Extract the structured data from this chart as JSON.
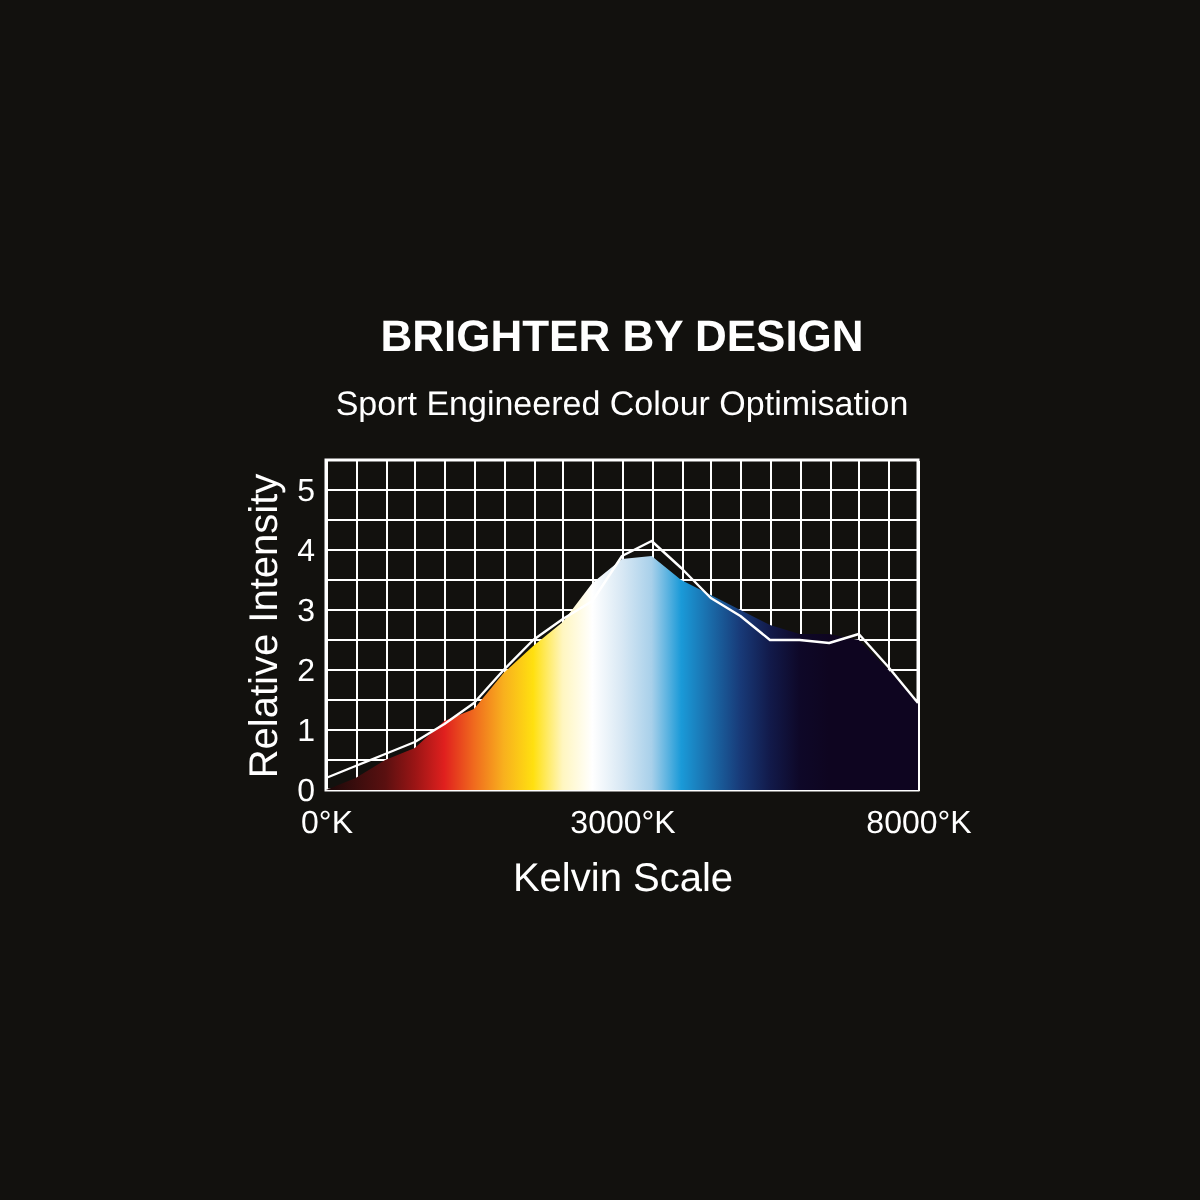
{
  "chart_data": {
    "type": "area",
    "title": "BRIGHTER BY DESIGN",
    "subtitle": "Sport Engineered Colour Optimisation",
    "xlabel": "Kelvin Scale",
    "ylabel": "Relative Intensity",
    "categories": [
      "0°K",
      null,
      null,
      null,
      null,
      null,
      null,
      null,
      null,
      null,
      "3000°K",
      null,
      null,
      null,
      null,
      null,
      null,
      null,
      null,
      null,
      "8000°K"
    ],
    "series": [
      {
        "colors": [
          "#1a0808",
          "#3a0d0d",
          "#5a1010",
          "#9a1515",
          "#e0201e",
          "#f06a1e",
          "#f8b01e",
          "#ffe010",
          "#fff6c0",
          "#ffffff",
          "#d8e8f4",
          "#a8d0ea",
          "#1a9ad8",
          "#1a6aa8",
          "#183a78",
          "#121a4a",
          "#0e0828",
          "#0e0520",
          "#0e0520",
          "#0e0520",
          "#0e0520"
        ],
        "values": [
          0,
          0.2,
          0.5,
          0.7,
          1.15,
          1.35,
          1.95,
          2.4,
          2.8,
          3.45,
          3.85,
          3.9,
          3.5,
          3.25,
          3.0,
          2.75,
          2.6,
          2.6,
          2.5,
          2.0,
          1.45
        ]
      },
      {
        "type": "line",
        "color": "#ffffff",
        "values": [
          0.2,
          0.4,
          0.6,
          0.8,
          1.1,
          1.45,
          2.0,
          2.5,
          2.85,
          3.15,
          3.9,
          4.15,
          3.7,
          3.2,
          2.9,
          2.5,
          2.5,
          2.45,
          2.6,
          2.05,
          1.45
        ]
      }
    ],
    "ylim": [
      0,
      5.5
    ],
    "yticks": [
      0,
      {
        "value": 0.5,
        "label": null
      },
      1,
      {
        "value": 1.5,
        "label": null
      },
      2,
      {
        "value": 2.5,
        "label": null
      },
      3,
      {
        "value": 3.5,
        "label": null
      },
      4,
      {
        "value": 4.5,
        "label": null
      },
      5,
      {
        "value": 5.5,
        "label": null
      }
    ],
    "grid": true
  }
}
